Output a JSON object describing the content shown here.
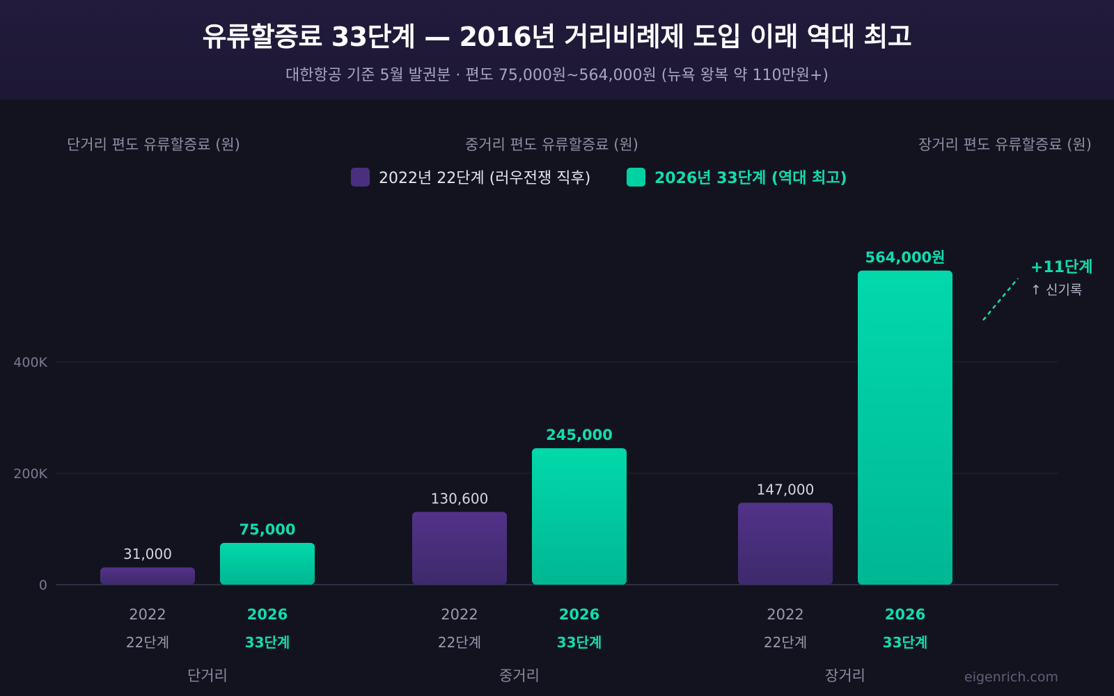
{
  "header": {
    "title": "유류할증료 33단계 — 2016년 거리비례제 도입 이래 역대 최고",
    "subtitle": "대한항공 기준 5월 발권분 · 편도 75,000원~564,000원 (뉴욕 왕복 약 110만원+)"
  },
  "panel_labels": [
    "단거리 편도 유류할증료 (원)",
    "중거리 편도 유류할증료 (원)",
    "장거리 편도 유류할증료 (원)"
  ],
  "legend": [
    {
      "label": "2022년 22단계 (러우전쟁 직후)",
      "color": "#4a2f7e"
    },
    {
      "label": "2026년 33단계 (역대 최고)",
      "color": "#00d1a3"
    }
  ],
  "chart_data": {
    "type": "bar",
    "categories": [
      "단거리",
      "중거리",
      "장거리"
    ],
    "series": [
      {
        "year": "2022",
        "stage": "22단계",
        "color": "#4a2f7e",
        "values": [
          31000,
          130600,
          147000
        ],
        "labels": [
          "31,000",
          "130,600",
          "147,000"
        ]
      },
      {
        "year": "2026",
        "stage": "33단계",
        "color": "#00d1a3",
        "values": [
          75000,
          245000,
          564000
        ],
        "labels": [
          "75,000",
          "245,000",
          "564,000원"
        ]
      }
    ],
    "ylim": [
      0,
      600000
    ],
    "yticks": [
      {
        "value": 0,
        "label": "0"
      },
      {
        "value": 200000,
        "label": "200K"
      },
      {
        "value": 400000,
        "label": "400K"
      }
    ],
    "grid": true,
    "legend_position": "top-center",
    "annotation": {
      "main": "+11단계",
      "sub": "↑ 신기록"
    }
  },
  "watermark": "eigenrich.com"
}
